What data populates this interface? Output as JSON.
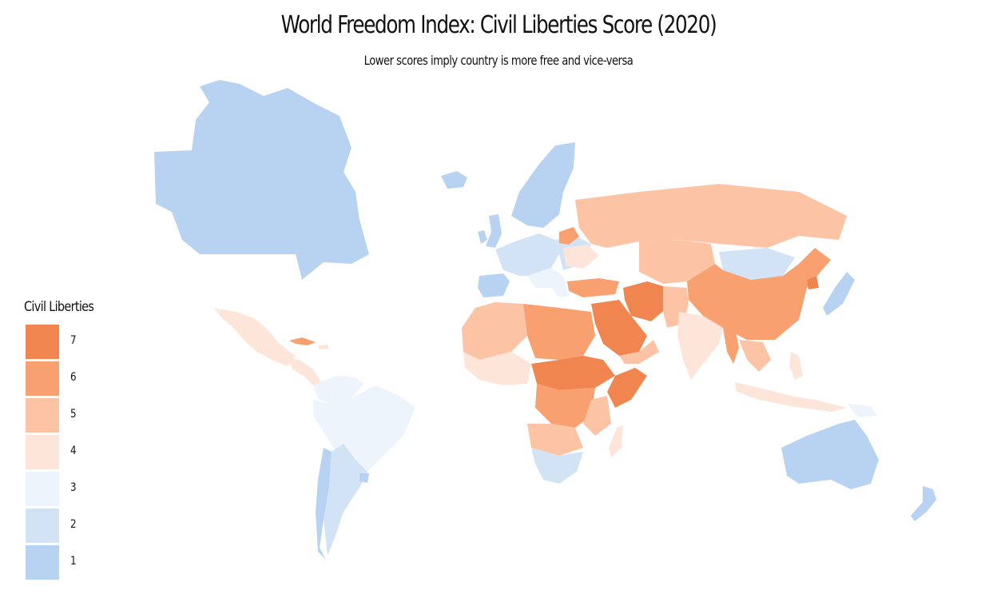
{
  "title": "World Freedom Index: Civil Liberties Score (2020)",
  "subtitle": "Lower scores imply country is more free and vice-versa",
  "legend": {
    "title": "Civil Liberties",
    "items": [
      {
        "label": "7",
        "color": "#f0854f"
      },
      {
        "label": "6",
        "color": "#f9a070"
      },
      {
        "label": "5",
        "color": "#fcc4a5"
      },
      {
        "label": "4",
        "color": "#fde6d9"
      },
      {
        "label": "3",
        "color": "#eef4fc"
      },
      {
        "label": "2",
        "color": "#d3e3f6"
      },
      {
        "label": "1",
        "color": "#b7d3f1"
      }
    ]
  }
}
